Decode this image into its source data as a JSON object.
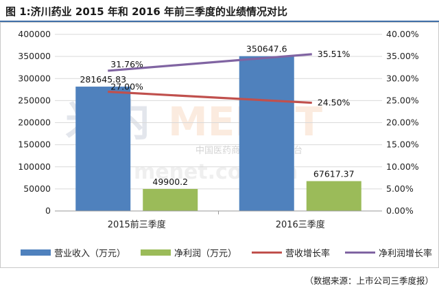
{
  "title": "图 1:济川药业 2015 年和 2016 年前三季度的业绩情况对比",
  "source": "（数据来源：上市公司三季度报）",
  "watermark": {
    "logo": "MENET",
    "tagline": "中国医药商务信息第一平台",
    "url": "menet.com.cn"
  },
  "colors": {
    "revenue": "#4f81bd",
    "profit": "#9bbb59",
    "revenue_growth": "#c0504d",
    "profit_growth": "#8064a2",
    "grid": "#d9d9d9"
  },
  "chart_data": {
    "type": "bar",
    "categories": [
      "2015前三季度",
      "2016三季度"
    ],
    "series": [
      {
        "name": "营业收入（万元）",
        "kind": "bar",
        "axis": "left",
        "values": [
          281645.83,
          350647.6
        ],
        "labels": [
          "281645.83",
          "350647.6"
        ]
      },
      {
        "name": "净利润（万元）",
        "kind": "bar",
        "axis": "left",
        "values": [
          49900.2,
          67617.37
        ],
        "labels": [
          "49900.2",
          "67617.37"
        ]
      },
      {
        "name": "营收增长率",
        "kind": "line",
        "axis": "right",
        "values": [
          27.0,
          24.5
        ],
        "labels": [
          "27.00%",
          "24.50%"
        ]
      },
      {
        "name": "净利润增长率",
        "kind": "line",
        "axis": "right",
        "values": [
          31.76,
          35.51
        ],
        "labels": [
          "31.76%",
          "35.51%"
        ]
      }
    ],
    "y_left": {
      "min": 0,
      "max": 400000,
      "ticks": [
        "0",
        "50000",
        "100000",
        "150000",
        "200000",
        "250000",
        "300000",
        "350000",
        "400000"
      ]
    },
    "y_right": {
      "min": 0,
      "max": 40,
      "ticks": [
        "0.00%",
        "5.00%",
        "10.00%",
        "15.00%",
        "20.00%",
        "25.00%",
        "30.00%",
        "35.00%",
        "40.00%"
      ]
    },
    "grid": true,
    "legend": "bottom"
  }
}
